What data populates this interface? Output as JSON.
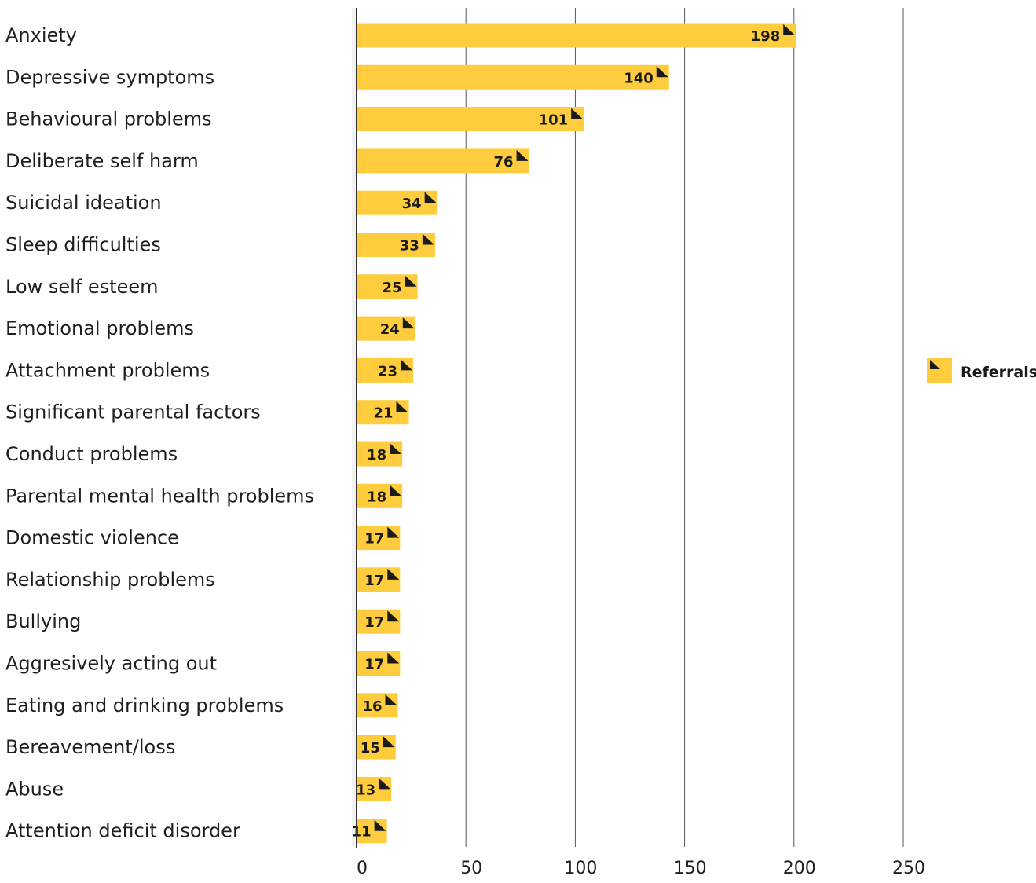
{
  "colors": {
    "bar": "#fecc3c",
    "axis": "#333333",
    "grid": "#555555",
    "marker": "#1a1a1a"
  },
  "chart_data": {
    "type": "bar",
    "orientation": "horizontal",
    "categories": [
      "Anxiety",
      "Depressive symptoms",
      "Behavioural problems",
      "Deliberate self harm",
      "Suicidal ideation",
      "Sleep difficulties",
      "Low self esteem",
      "Emotional problems",
      "Attachment problems",
      "Significant parental factors",
      "Conduct problems",
      "Parental mental health problems",
      "Domestic violence",
      "Relationship problems",
      "Bullying",
      "Aggresively acting out",
      "Eating and drinking problems",
      "Bereavement/loss",
      "Abuse",
      "Attention deficit disorder"
    ],
    "series": [
      {
        "name": "Referrals",
        "values": [
          198,
          140,
          101,
          76,
          34,
          33,
          25,
          24,
          23,
          21,
          18,
          18,
          17,
          17,
          17,
          17,
          16,
          15,
          13,
          11
        ]
      }
    ],
    "xlim": [
      0,
      250
    ],
    "xticks": [
      0,
      50,
      100,
      150,
      200,
      250
    ],
    "grid": true,
    "legend": "right"
  }
}
